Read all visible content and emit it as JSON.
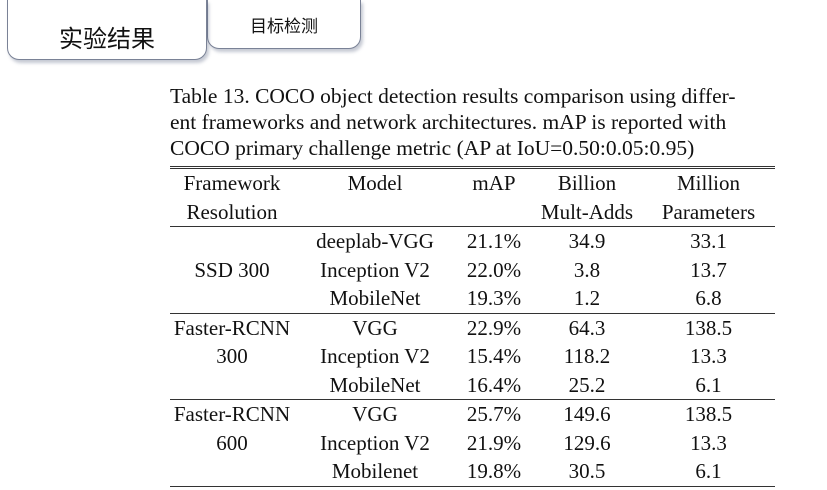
{
  "tabs": [
    {
      "label": "实验结果"
    },
    {
      "label": "目标检测"
    }
  ],
  "caption": [
    "Table 13. COCO object detection results comparison using differ-",
    "ent frameworks and network architectures. mAP is reported with",
    "COCO primary challenge metric (AP at IoU=0.50:0.05:0.95)"
  ],
  "table": {
    "header": [
      [
        "Framework",
        "Model",
        "mAP",
        "Billion",
        "Million"
      ],
      [
        "Resolution",
        "",
        "",
        "Mult-Adds",
        "Parameters"
      ]
    ],
    "groups": [
      {
        "framework": [
          "",
          "SSD 300",
          ""
        ],
        "rows": [
          [
            "deeplab-VGG",
            "21.1%",
            "34.9",
            "33.1"
          ],
          [
            "Inception V2",
            "22.0%",
            "3.8",
            "13.7"
          ],
          [
            "MobileNet",
            "19.3%",
            "1.2",
            "6.8"
          ]
        ]
      },
      {
        "framework": [
          "Faster-RCNN",
          "300",
          ""
        ],
        "rows": [
          [
            "VGG",
            "22.9%",
            "64.3",
            "138.5"
          ],
          [
            "Inception V2",
            "15.4%",
            "118.2",
            "13.3"
          ],
          [
            "MobileNet",
            "16.4%",
            "25.2",
            "6.1"
          ]
        ]
      },
      {
        "framework": [
          "Faster-RCNN",
          "600",
          ""
        ],
        "rows": [
          [
            "VGG",
            "25.7%",
            "149.6",
            "138.5"
          ],
          [
            "Inception V2",
            "21.9%",
            "129.6",
            "13.3"
          ],
          [
            "Mobilenet",
            "19.8%",
            "30.5",
            "6.1"
          ]
        ]
      }
    ]
  }
}
